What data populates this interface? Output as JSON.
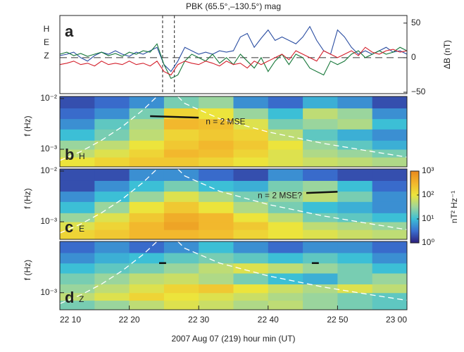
{
  "chart_data": [
    {
      "type": "line",
      "title": "PBK (65.5°,–130.5°) mag",
      "y_label": "ΔB (nT)",
      "label": "a",
      "x": [
        10,
        11,
        12,
        13,
        14,
        15,
        16,
        17,
        18,
        19,
        20,
        21,
        22,
        23,
        24,
        25,
        26,
        27,
        28,
        29,
        30,
        31,
        32,
        33,
        34,
        35,
        36,
        37,
        38,
        39,
        40,
        41,
        42,
        43,
        44,
        45,
        46,
        47,
        48,
        49,
        50,
        51,
        52,
        53,
        54,
        55,
        56,
        57,
        58,
        59,
        60
      ],
      "xlim": [
        10,
        60
      ],
      "ylim": [
        -52,
        61
      ],
      "yticks": [
        {
          "value": -50,
          "label": "−50"
        },
        0,
        50
      ],
      "vlines": [
        24.8,
        26.5
      ],
      "series": [
        {
          "name": "H",
          "color": "#2b4ea2",
          "values": [
            3,
            5,
            8,
            0,
            -5,
            3,
            8,
            5,
            10,
            5,
            2,
            8,
            5,
            10,
            15,
            -10,
            -20,
            -5,
            15,
            10,
            5,
            8,
            5,
            10,
            8,
            10,
            30,
            35,
            15,
            28,
            40,
            25,
            30,
            25,
            20,
            30,
            45,
            25,
            10,
            5,
            40,
            30,
            15,
            5,
            10,
            5,
            10,
            15,
            8,
            10,
            5
          ]
        },
        {
          "name": "E",
          "color": "#17783a",
          "values": [
            5,
            8,
            3,
            6,
            2,
            5,
            8,
            3,
            6,
            2,
            8,
            5,
            10,
            8,
            20,
            -10,
            -30,
            -25,
            -5,
            5,
            0,
            -5,
            5,
            -8,
            0,
            -10,
            5,
            -5,
            -15,
            0,
            -20,
            -5,
            5,
            -10,
            5,
            0,
            -15,
            -20,
            -25,
            -5,
            -10,
            -5,
            5,
            10,
            0,
            5,
            10,
            5,
            8,
            15,
            10
          ]
        },
        {
          "name": "Z",
          "color": "#d4202c",
          "values": [
            -10,
            -8,
            -5,
            -10,
            -8,
            -12,
            -5,
            -10,
            -8,
            -10,
            -5,
            -10,
            -8,
            -12,
            -5,
            -20,
            -25,
            -10,
            -5,
            -8,
            -10,
            -5,
            -8,
            -12,
            -5,
            -10,
            -8,
            -15,
            -5,
            -10,
            -5,
            0,
            5,
            -3,
            10,
            5,
            0,
            -5,
            10,
            5,
            0,
            5,
            10,
            3,
            15,
            8,
            5,
            10,
            12,
            8,
            10
          ]
        }
      ]
    },
    {
      "type": "heatmap",
      "label": "b",
      "component": "H",
      "y_label": "f (Hz)",
      "log_y": true,
      "xlim": [
        10,
        60
      ],
      "ylim": [
        0.00045,
        0.011
      ],
      "yticks": [
        {
          "value": 0.001,
          "label": "10⁻³"
        },
        {
          "value": 0.01,
          "label": "10⁻²"
        }
      ],
      "x_bins": [
        10,
        15,
        20,
        25,
        30,
        35,
        40,
        45,
        50,
        55,
        60
      ],
      "f_bins": [
        0.00045,
        0.0007,
        0.001,
        0.0015,
        0.0025,
        0.004,
        0.0065,
        0.011
      ],
      "values": [
        [
          100,
          150,
          200,
          200,
          150,
          100,
          80,
          60,
          50,
          40
        ],
        [
          50,
          80,
          150,
          300,
          250,
          150,
          80,
          40,
          30,
          20
        ],
        [
          30,
          50,
          100,
          200,
          300,
          200,
          100,
          30,
          15,
          8
        ],
        [
          10,
          20,
          50,
          150,
          200,
          150,
          50,
          15,
          8,
          5
        ],
        [
          5,
          15,
          40,
          300,
          250,
          80,
          20,
          30,
          40,
          10
        ],
        [
          3,
          5,
          20,
          150,
          100,
          30,
          10,
          50,
          30,
          5
        ],
        [
          2,
          3,
          5,
          20,
          30,
          5,
          3,
          8,
          5,
          2
        ]
      ],
      "guide_curves": [
        {
          "x": [
            10,
            13,
            16,
            19,
            22,
            24
          ],
          "f": [
            0.0006,
            0.0009,
            0.0015,
            0.0028,
            0.006,
            0.011
          ]
        },
        {
          "x": [
            27,
            28,
            33,
            40,
            48,
            55,
            60
          ],
          "f": [
            0.011,
            0.008,
            0.004,
            0.0022,
            0.0013,
            0.0009,
            0.0007
          ]
        }
      ],
      "mse": [
        {
          "x": [
            23,
            30
          ],
          "f": [
            0.0045,
            0.0042
          ],
          "annotation": "n = 2 MSE"
        }
      ]
    },
    {
      "type": "heatmap",
      "label": "c",
      "component": "E",
      "y_label": "f (Hz)",
      "log_y": true,
      "xlim": [
        10,
        60
      ],
      "ylim": [
        0.00045,
        0.011
      ],
      "yticks": [
        {
          "value": 0.001,
          "label": "10⁻³"
        },
        {
          "value": 0.01,
          "label": "10⁻²"
        }
      ],
      "x_bins": [
        10,
        15,
        20,
        25,
        30,
        35,
        40,
        45,
        50,
        55,
        60
      ],
      "f_bins": [
        0.00045,
        0.0007,
        0.001,
        0.0015,
        0.0025,
        0.004,
        0.0065,
        0.011
      ],
      "values": [
        [
          150,
          200,
          300,
          300,
          250,
          150,
          100,
          80,
          60,
          50
        ],
        [
          80,
          150,
          300,
          500,
          300,
          200,
          100,
          50,
          40,
          30
        ],
        [
          30,
          80,
          200,
          400,
          300,
          100,
          50,
          20,
          15,
          10
        ],
        [
          10,
          30,
          100,
          200,
          100,
          40,
          20,
          10,
          8,
          5
        ],
        [
          5,
          10,
          30,
          80,
          40,
          20,
          30,
          50,
          20,
          5
        ],
        [
          2,
          5,
          10,
          20,
          10,
          8,
          20,
          30,
          10,
          3
        ],
        [
          2,
          2,
          5,
          5,
          3,
          2,
          5,
          3,
          2,
          2
        ]
      ],
      "guide_curves": [
        {
          "x": [
            10,
            13,
            16,
            19,
            22,
            24
          ],
          "f": [
            0.0006,
            0.0009,
            0.0015,
            0.0028,
            0.006,
            0.011
          ]
        },
        {
          "x": [
            27,
            28,
            33,
            40,
            48,
            55,
            60
          ],
          "f": [
            0.011,
            0.008,
            0.004,
            0.0022,
            0.0013,
            0.0009,
            0.0007
          ]
        }
      ],
      "mse": [
        {
          "x": [
            45.5,
            50
          ],
          "f": [
            0.0037,
            0.0039
          ],
          "annotation": "n = 2 MSE?"
        }
      ],
      "colormap": [
        "#2d1f7c",
        "#3a6fcf",
        "#3cbfd6",
        "#9fd69a",
        "#ece43c",
        "#f2b62c",
        "#e8891e"
      ],
      "clim": [
        1,
        1000
      ],
      "colorbar_label": "nT² Hz⁻¹",
      "cticks": [
        {
          "value": 1,
          "label": "10⁰"
        },
        {
          "value": 10,
          "label": "10¹"
        },
        {
          "value": 100,
          "label": "10²"
        },
        {
          "value": 1000,
          "label": "10³"
        }
      ]
    },
    {
      "type": "heatmap",
      "label": "d",
      "component": "Z",
      "y_label": "f (Hz)",
      "log_y": true,
      "xlim": [
        10,
        60
      ],
      "ylim": [
        0.00045,
        0.011
      ],
      "yticks": [
        {
          "value": 0.001,
          "label": "10⁻³"
        }
      ],
      "x_bins": [
        10,
        15,
        20,
        25,
        30,
        35,
        40,
        45,
        50,
        55,
        60
      ],
      "f_bins": [
        0.00045,
        0.0007,
        0.001,
        0.0015,
        0.0025,
        0.004,
        0.0065,
        0.011
      ],
      "values": [
        [
          20,
          30,
          50,
          80,
          60,
          40,
          50,
          30,
          20,
          15
        ],
        [
          50,
          80,
          150,
          100,
          80,
          60,
          40,
          30,
          20,
          15
        ],
        [
          30,
          50,
          80,
          150,
          200,
          100,
          60,
          40,
          80,
          50
        ],
        [
          20,
          30,
          50,
          60,
          40,
          20,
          10,
          8,
          20,
          30
        ],
        [
          10,
          15,
          20,
          30,
          50,
          80,
          50,
          30,
          20,
          10
        ],
        [
          5,
          8,
          10,
          15,
          20,
          15,
          10,
          15,
          10,
          5
        ],
        [
          3,
          5,
          3,
          5,
          10,
          5,
          3,
          5,
          5,
          3
        ]
      ],
      "guide_curves": [
        {
          "x": [
            10,
            13,
            16,
            19,
            22,
            24
          ],
          "f": [
            0.0006,
            0.0009,
            0.0015,
            0.0028,
            0.006,
            0.011
          ]
        },
        {
          "x": [
            27,
            28,
            33,
            40,
            48,
            55,
            60
          ],
          "f": [
            0.011,
            0.008,
            0.004,
            0.0022,
            0.0013,
            0.0009,
            0.0007
          ]
        }
      ],
      "mse": [
        {
          "x": [
            24.3,
            25.3
          ],
          "f": [
            0.004,
            0.004
          ]
        },
        {
          "x": [
            46.3,
            47.3
          ],
          "f": [
            0.004,
            0.004
          ]
        }
      ],
      "x_label": "2007 Aug 07 (219)  hour min (UT)",
      "xticks": [
        {
          "value": 10,
          "label": "22 10"
        },
        {
          "value": 20,
          "label": "22 20"
        },
        {
          "value": 30,
          "label": "22 30"
        },
        {
          "value": 40,
          "label": "22 40"
        },
        {
          "value": 50,
          "label": "22 50"
        },
        {
          "value": 60,
          "label": "23 00"
        }
      ]
    }
  ]
}
